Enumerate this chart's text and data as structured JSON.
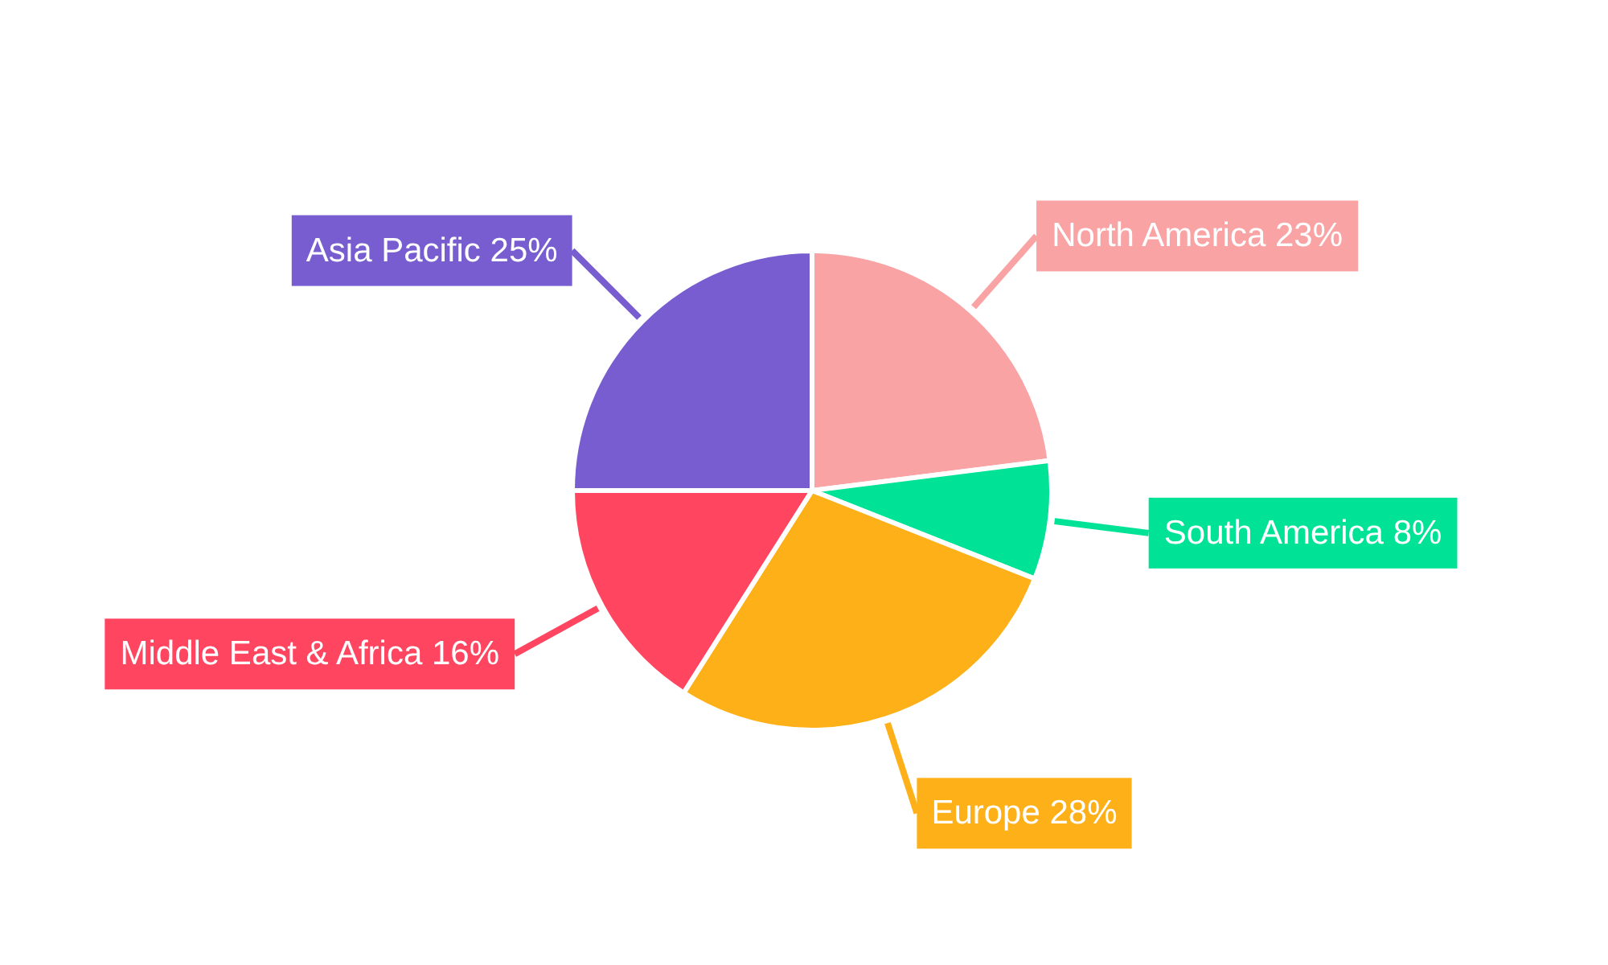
{
  "chart_data": {
    "type": "pie",
    "categories": [
      "North America",
      "South America",
      "Europe",
      "Middle East & Africa",
      "Asia Pacific"
    ],
    "values": [
      23,
      8,
      28,
      16,
      25
    ],
    "colors": [
      "#f9a3a4",
      "#00e396",
      "#feb019",
      "#ff4560",
      "#775dd0"
    ],
    "value_labels": [
      "23%",
      "8%",
      "28%",
      "16%",
      "25%"
    ],
    "legend": false
  }
}
